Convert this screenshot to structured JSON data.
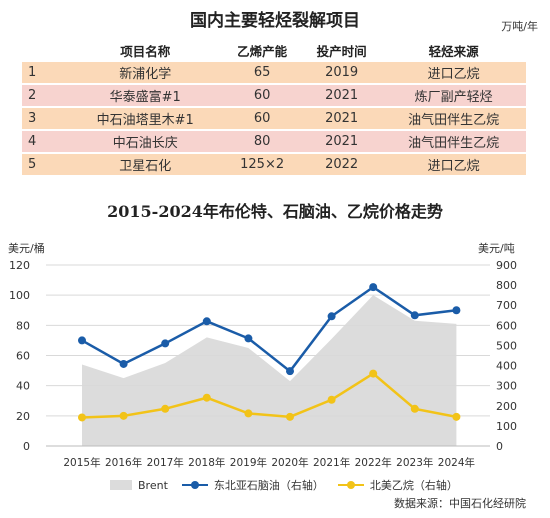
{
  "table": {
    "title": "国内主要轻烃裂解项目",
    "unit": "万吨/年",
    "headers": [
      "",
      "项目名称",
      "乙烯产能",
      "投产时间",
      "轻烃来源"
    ],
    "rows": [
      [
        "1",
        "新浦化学",
        "65",
        "2019",
        "进口乙烷"
      ],
      [
        "2",
        "华泰盛富#1",
        "60",
        "2021",
        "炼厂副产轻烃"
      ],
      [
        "3",
        "中石油塔里木#1",
        "60",
        "2021",
        "油气田伴生乙烷"
      ],
      [
        "4",
        "中石油长庆",
        "80",
        "2021",
        "油气田伴生乙烷"
      ],
      [
        "5",
        "卫星石化",
        "125×2",
        "2022",
        "进口乙烷"
      ]
    ],
    "row_colors": [
      "#fbd9b8",
      "#f7d3cf"
    ]
  },
  "chart_data": {
    "type": "line",
    "title": "2015-2024年布伦特、石脑油、乙烷价格走势",
    "left_axis_unit": "美元/桶",
    "right_axis_unit": "美元/吨",
    "categories": [
      "2015年",
      "2016年",
      "2017年",
      "2018年",
      "2019年",
      "2020年",
      "2021年",
      "2022年",
      "2023年",
      "2024年"
    ],
    "left_ylim": [
      0,
      120
    ],
    "left_ticks": [
      "0",
      "20",
      "40",
      "60",
      "80",
      "100",
      "120"
    ],
    "right_ylim": [
      0,
      900
    ],
    "right_ticks": [
      "0",
      "100",
      "200",
      "300",
      "400",
      "500",
      "600",
      "700",
      "800",
      "900"
    ],
    "series": [
      {
        "name": "Brent",
        "kind": "area",
        "axis": "left",
        "color": "#dcdcdc",
        "values": [
          54,
          45,
          55,
          72,
          65,
          43,
          71,
          100,
          83,
          81
        ]
      },
      {
        "name": "东北亚石脑油（右轴）",
        "kind": "line",
        "axis": "right",
        "color": "#1a5ca8",
        "values": [
          525,
          408,
          510,
          620,
          535,
          372,
          645,
          790,
          650,
          675
        ]
      },
      {
        "name": "北美乙烷（右轴）",
        "kind": "line",
        "axis": "right",
        "color": "#f2c318",
        "values": [
          142,
          150,
          185,
          240,
          162,
          145,
          230,
          360,
          185,
          145
        ]
      }
    ],
    "grid": true,
    "legend": "bottom"
  },
  "source": "数据来源：中国石化经研院"
}
